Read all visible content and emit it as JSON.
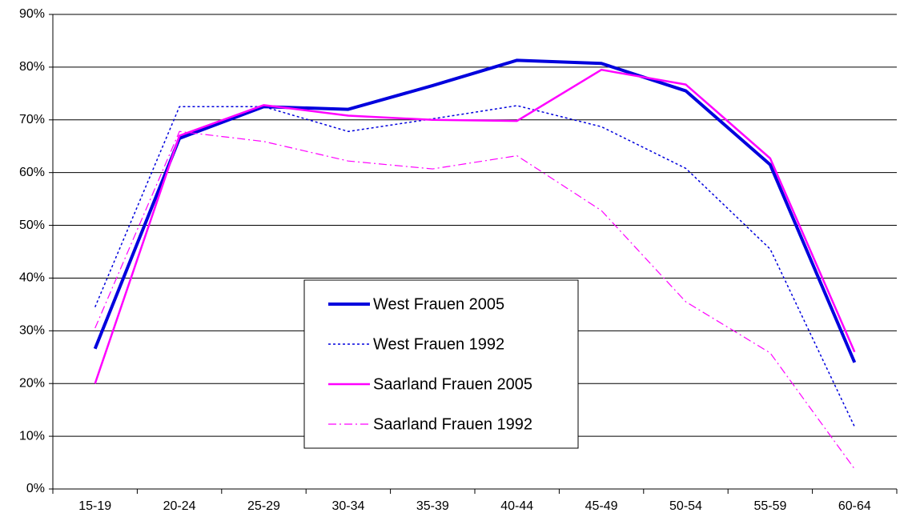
{
  "chart_data": {
    "type": "line",
    "categories": [
      "15-19",
      "20-24",
      "25-29",
      "30-34",
      "35-39",
      "40-44",
      "45-49",
      "50-54",
      "55-59",
      "60-64"
    ],
    "series": [
      {
        "name": "West Frauen 2005",
        "color": "#0000dd",
        "line_width": 4,
        "line_style": "solid",
        "values": [
          26.6,
          66.5,
          72.5,
          72,
          76.5,
          81.3,
          80.7,
          75.5,
          61.5,
          24
        ]
      },
      {
        "name": "West Frauen 1992",
        "color": "#0000dd",
        "line_width": 1.5,
        "line_style": "dotted",
        "values": [
          34.5,
          72.5,
          72.5,
          67.8,
          70.2,
          72.7,
          68.7,
          60.8,
          45.5,
          11.8
        ]
      },
      {
        "name": "Saarland Frauen 2005",
        "color": "#ff00ff",
        "line_width": 2.5,
        "line_style": "solid",
        "values": [
          20,
          67,
          72.8,
          70.8,
          70,
          69.8,
          79.5,
          76.7,
          62.7,
          26
        ]
      },
      {
        "name": "Saarland Frauen 1992",
        "color": "#ff00ff",
        "line_width": 1.2,
        "line_style": "dashdot",
        "values": [
          30.5,
          67.8,
          65.9,
          62.2,
          60.7,
          63.2,
          52.8,
          35.5,
          25.8,
          3.8
        ]
      }
    ],
    "ylim": [
      0,
      90
    ],
    "yticks": [
      {
        "value": 0,
        "label": "0%"
      },
      {
        "value": 10,
        "label": "10%"
      },
      {
        "value": 20,
        "label": "20%"
      },
      {
        "value": 30,
        "label": "30%"
      },
      {
        "value": 40,
        "label": "40%"
      },
      {
        "value": 50,
        "label": "50%"
      },
      {
        "value": 60,
        "label": "60%"
      },
      {
        "value": 70,
        "label": "70%"
      },
      {
        "value": 80,
        "label": "80%"
      },
      {
        "value": 90,
        "label": "90%"
      }
    ],
    "grid": true,
    "legend": "center"
  }
}
